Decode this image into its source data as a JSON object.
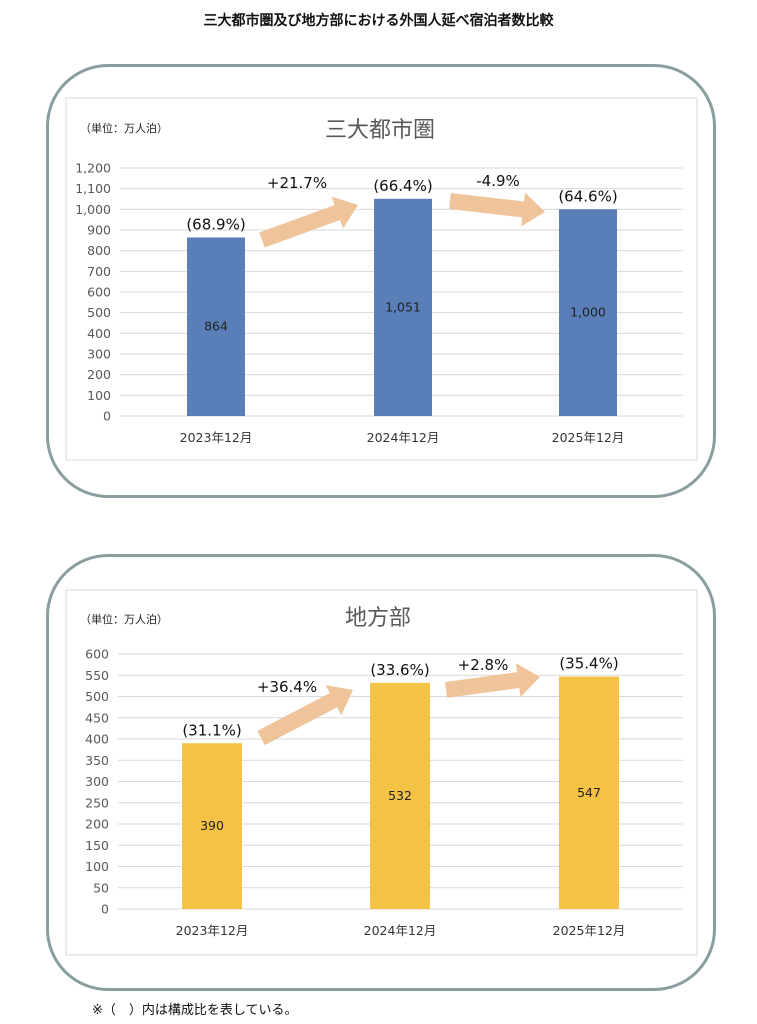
{
  "page_title": "三大都市圏及び地方部における外国人延べ宿泊者数比較",
  "footnote": "※（　）内は構成比を表している。",
  "chart_data": [
    {
      "type": "bar",
      "title": "三大都市圏",
      "unit_label": "（単位：万人泊）",
      "categories": [
        "2023年12月",
        "2024年12月",
        "2025年12月"
      ],
      "values": [
        864,
        1051,
        1000
      ],
      "value_labels": [
        "864",
        "1,051",
        "1,000"
      ],
      "share_labels": [
        "(68.9%)",
        "(66.4%)",
        "(64.6%)"
      ],
      "change_labels": [
        "+21.7%",
        "-4.9%"
      ],
      "ylim": [
        0,
        1200
      ],
      "yticks": [
        0,
        100,
        200,
        300,
        400,
        500,
        600,
        700,
        800,
        900,
        1000,
        1100,
        1200
      ],
      "ytick_labels": [
        "0",
        "100",
        "200",
        "300",
        "400",
        "500",
        "600",
        "700",
        "800",
        "900",
        "1,000",
        "1,100",
        "1,200"
      ],
      "grid": true,
      "bar_color": "#5a7fb8",
      "arrow_color": "#f0c49a"
    },
    {
      "type": "bar",
      "title": "地方部",
      "unit_label": "（単位：万人泊）",
      "categories": [
        "2023年12月",
        "2024年12月",
        "2025年12月"
      ],
      "values": [
        390,
        532,
        547
      ],
      "value_labels": [
        "390",
        "532",
        "547"
      ],
      "share_labels": [
        "(31.1%)",
        "(33.6%)",
        "(35.4%)"
      ],
      "change_labels": [
        "+36.4%",
        "+2.8%"
      ],
      "ylim": [
        0,
        600
      ],
      "yticks": [
        0,
        50,
        100,
        150,
        200,
        250,
        300,
        350,
        400,
        450,
        500,
        550,
        600
      ],
      "ytick_labels": [
        "0",
        "50",
        "100",
        "150",
        "200",
        "250",
        "300",
        "350",
        "400",
        "450",
        "500",
        "550",
        "600"
      ],
      "grid": true,
      "bar_color": "#f4c244",
      "arrow_color": "#f0c49a"
    }
  ]
}
